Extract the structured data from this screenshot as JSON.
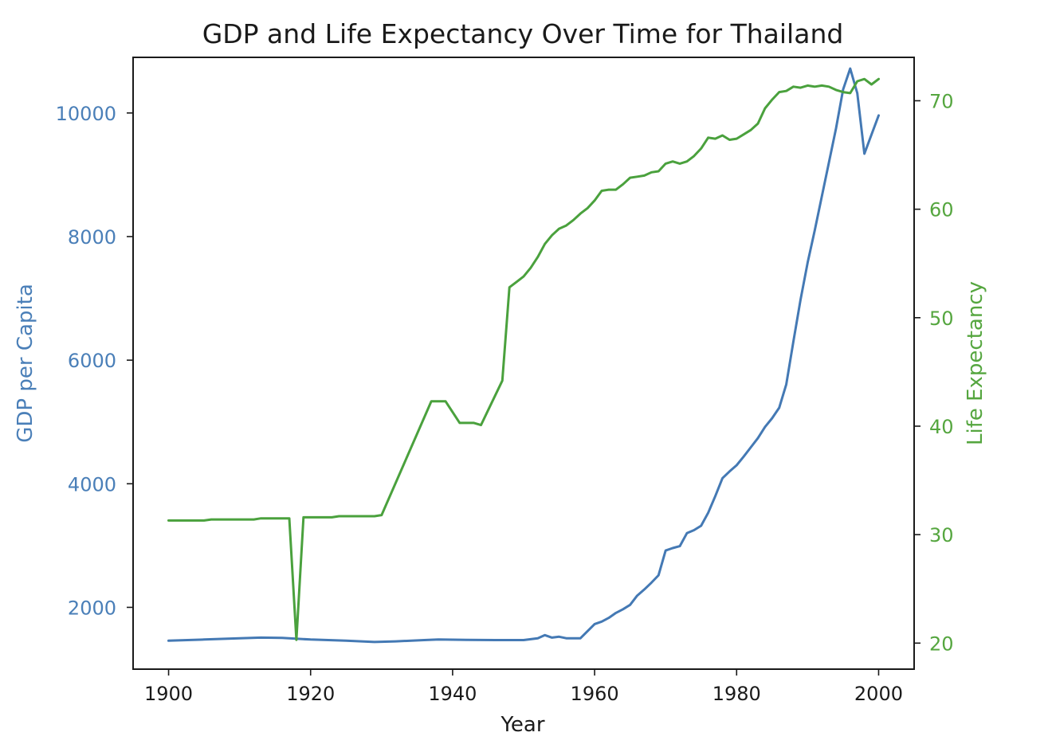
{
  "chart_data": {
    "type": "line",
    "title": "GDP and Life Expectancy Over Time for Thailand",
    "xlabel": "Year",
    "ylabel_left": "GDP per Capita",
    "ylabel_right": "Life Expectancy",
    "xlim": [
      1895,
      2005
    ],
    "ylim_left": [
      1000,
      10900
    ],
    "ylim_right": [
      17.6,
      74.0
    ],
    "x_ticks": [
      1900,
      1920,
      1940,
      1960,
      1980,
      2000
    ],
    "y_left_ticks": [
      2000,
      4000,
      6000,
      8000,
      10000
    ],
    "y_right_ticks": [
      20,
      30,
      40,
      50,
      60,
      70
    ],
    "colors": {
      "gdp": "#4479b4",
      "life": "#4aa13d",
      "gdp_ticks": "#4a7fb8",
      "life_ticks": "#55a63f"
    },
    "series": [
      {
        "axis": "left",
        "points": [
          [
            1900,
            1460
          ],
          [
            1905,
            1480
          ],
          [
            1910,
            1500
          ],
          [
            1913,
            1510
          ],
          [
            1916,
            1505
          ],
          [
            1920,
            1480
          ],
          [
            1925,
            1460
          ],
          [
            1929,
            1440
          ],
          [
            1932,
            1450
          ],
          [
            1936,
            1470
          ],
          [
            1938,
            1480
          ],
          [
            1942,
            1475
          ],
          [
            1946,
            1470
          ],
          [
            1950,
            1470
          ],
          [
            1952,
            1500
          ],
          [
            1953,
            1550
          ],
          [
            1954,
            1510
          ],
          [
            1955,
            1525
          ],
          [
            1956,
            1500
          ],
          [
            1958,
            1500
          ],
          [
            1960,
            1730
          ],
          [
            1961,
            1770
          ],
          [
            1962,
            1830
          ],
          [
            1963,
            1910
          ],
          [
            1964,
            1970
          ],
          [
            1965,
            2040
          ],
          [
            1966,
            2190
          ],
          [
            1967,
            2290
          ],
          [
            1968,
            2400
          ],
          [
            1969,
            2520
          ],
          [
            1970,
            2920
          ],
          [
            1971,
            2960
          ],
          [
            1972,
            2990
          ],
          [
            1973,
            3200
          ],
          [
            1974,
            3250
          ],
          [
            1975,
            3320
          ],
          [
            1976,
            3530
          ],
          [
            1977,
            3800
          ],
          [
            1978,
            4090
          ],
          [
            1979,
            4200
          ],
          [
            1980,
            4300
          ],
          [
            1981,
            4440
          ],
          [
            1982,
            4590
          ],
          [
            1983,
            4740
          ],
          [
            1984,
            4920
          ],
          [
            1985,
            5060
          ],
          [
            1986,
            5230
          ],
          [
            1987,
            5610
          ],
          [
            1988,
            6300
          ],
          [
            1989,
            6980
          ],
          [
            1990,
            7580
          ],
          [
            1991,
            8100
          ],
          [
            1992,
            8650
          ],
          [
            1993,
            9200
          ],
          [
            1994,
            9750
          ],
          [
            1995,
            10380
          ],
          [
            1996,
            10720
          ],
          [
            1997,
            10320
          ],
          [
            1998,
            9340
          ],
          [
            1999,
            9650
          ],
          [
            2000,
            9960
          ]
        ]
      },
      {
        "axis": "right",
        "points": [
          [
            1900,
            31.3
          ],
          [
            1905,
            31.3
          ],
          [
            1906,
            31.4
          ],
          [
            1912,
            31.4
          ],
          [
            1913,
            31.5
          ],
          [
            1917,
            31.5
          ],
          [
            1918,
            20.3
          ],
          [
            1919,
            31.6
          ],
          [
            1923,
            31.6
          ],
          [
            1924,
            31.7
          ],
          [
            1929,
            31.7
          ],
          [
            1930,
            31.8
          ],
          [
            1937,
            42.3
          ],
          [
            1939,
            42.3
          ],
          [
            1941,
            40.3
          ],
          [
            1943,
            40.3
          ],
          [
            1944,
            40.1
          ],
          [
            1947,
            44.2
          ],
          [
            1948,
            52.8
          ],
          [
            1949,
            53.3
          ],
          [
            1950,
            53.8
          ],
          [
            1951,
            54.6
          ],
          [
            1952,
            55.6
          ],
          [
            1953,
            56.8
          ],
          [
            1954,
            57.6
          ],
          [
            1955,
            58.2
          ],
          [
            1956,
            58.5
          ],
          [
            1957,
            59.0
          ],
          [
            1958,
            59.6
          ],
          [
            1959,
            60.1
          ],
          [
            1960,
            60.8
          ],
          [
            1961,
            61.7
          ],
          [
            1962,
            61.8
          ],
          [
            1963,
            61.8
          ],
          [
            1964,
            62.3
          ],
          [
            1965,
            62.9
          ],
          [
            1966,
            63.0
          ],
          [
            1967,
            63.1
          ],
          [
            1968,
            63.4
          ],
          [
            1969,
            63.5
          ],
          [
            1970,
            64.2
          ],
          [
            1971,
            64.4
          ],
          [
            1972,
            64.2
          ],
          [
            1973,
            64.4
          ],
          [
            1974,
            64.9
          ],
          [
            1975,
            65.6
          ],
          [
            1976,
            66.6
          ],
          [
            1977,
            66.5
          ],
          [
            1978,
            66.8
          ],
          [
            1979,
            66.4
          ],
          [
            1980,
            66.5
          ],
          [
            1981,
            66.9
          ],
          [
            1982,
            67.3
          ],
          [
            1983,
            67.9
          ],
          [
            1984,
            69.3
          ],
          [
            1985,
            70.1
          ],
          [
            1986,
            70.8
          ],
          [
            1987,
            70.9
          ],
          [
            1988,
            71.3
          ],
          [
            1989,
            71.2
          ],
          [
            1990,
            71.4
          ],
          [
            1991,
            71.3
          ],
          [
            1992,
            71.4
          ],
          [
            1993,
            71.3
          ],
          [
            1994,
            71.0
          ],
          [
            1995,
            70.8
          ],
          [
            1996,
            70.7
          ],
          [
            1997,
            71.8
          ],
          [
            1998,
            72.0
          ],
          [
            1999,
            71.5
          ],
          [
            2000,
            72.0
          ]
        ]
      }
    ]
  }
}
